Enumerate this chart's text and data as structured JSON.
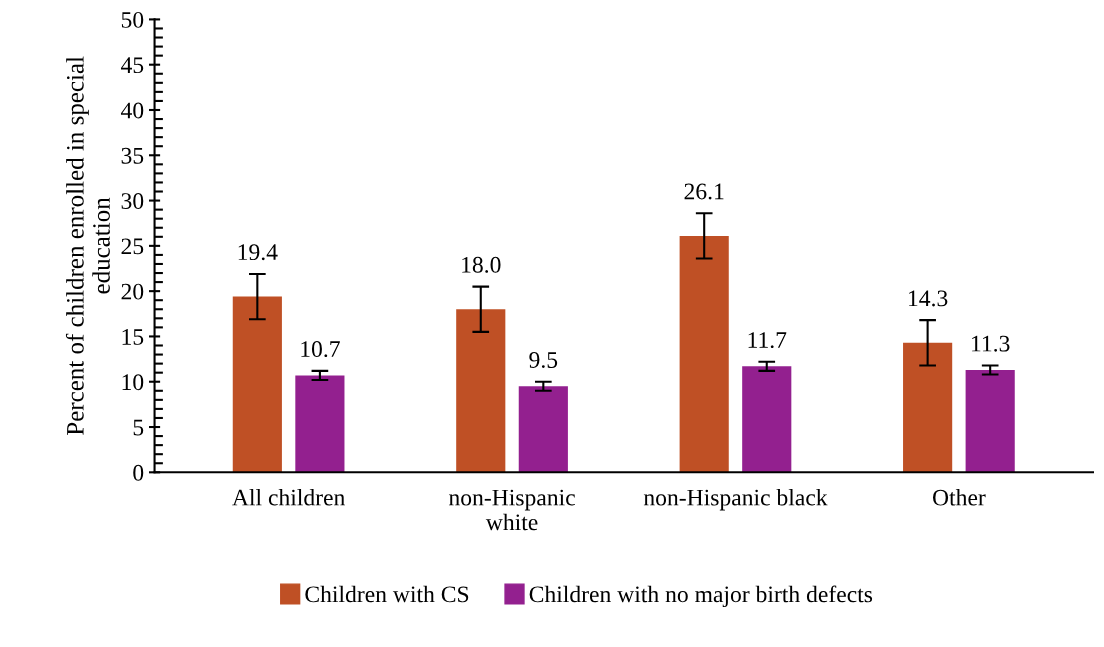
{
  "chart_data": {
    "type": "bar",
    "ylabel": "Percent of children enrolled in special\neducation",
    "categories": [
      "All children",
      "non-Hispanic\nwhite",
      "non-Hispanic black",
      "Other"
    ],
    "series": [
      {
        "name": "Children with CS",
        "color": "#bf5025",
        "values": [
          19.4,
          18.0,
          26.1,
          14.3
        ],
        "value_labels": [
          "19.4",
          "18.0",
          "26.1",
          "14.3"
        ],
        "errors": [
          2.5,
          2.5,
          2.5,
          2.5
        ]
      },
      {
        "name": "Children with no major birth defects",
        "color": "#93208f",
        "values": [
          10.7,
          9.5,
          11.7,
          11.3
        ],
        "value_labels": [
          "10.7",
          "9.5",
          "11.7",
          "11.3"
        ],
        "errors": [
          0.5,
          0.5,
          0.5,
          0.5
        ]
      }
    ],
    "ylim": [
      0,
      50
    ],
    "yticks": [
      0,
      5,
      10,
      15,
      20,
      25,
      30,
      35,
      40,
      45,
      50
    ],
    "legend": "bottom",
    "grid": false
  }
}
